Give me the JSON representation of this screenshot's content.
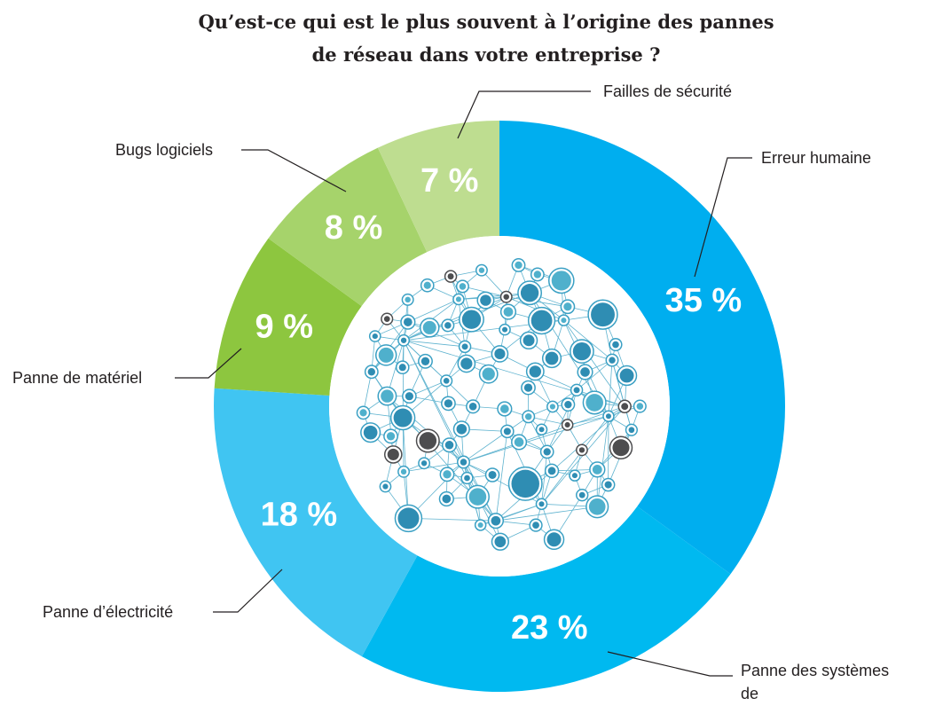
{
  "chart_data": {
    "type": "donut",
    "title": "Qu’est-ce qui est le plus souvent à l’origine des pannes de réseau dans votre entreprise ?",
    "categories": [
      "Erreur humaine",
      "Panne des systèmes de télécommunications",
      "Panne d’électricité",
      "Panne de matériel",
      "Bugs logiciels",
      "Failles de sécurité"
    ],
    "values": [
      35,
      23,
      18,
      9,
      8,
      7
    ],
    "value_labels": [
      "35 %",
      "23 %",
      "18 %",
      "9 %",
      "8 %",
      "7 %"
    ],
    "colors": [
      "#00aeef",
      "#00b9f0",
      "#40c5f2",
      "#8dc63f",
      "#a6d36b",
      "#bedd90"
    ]
  }
}
